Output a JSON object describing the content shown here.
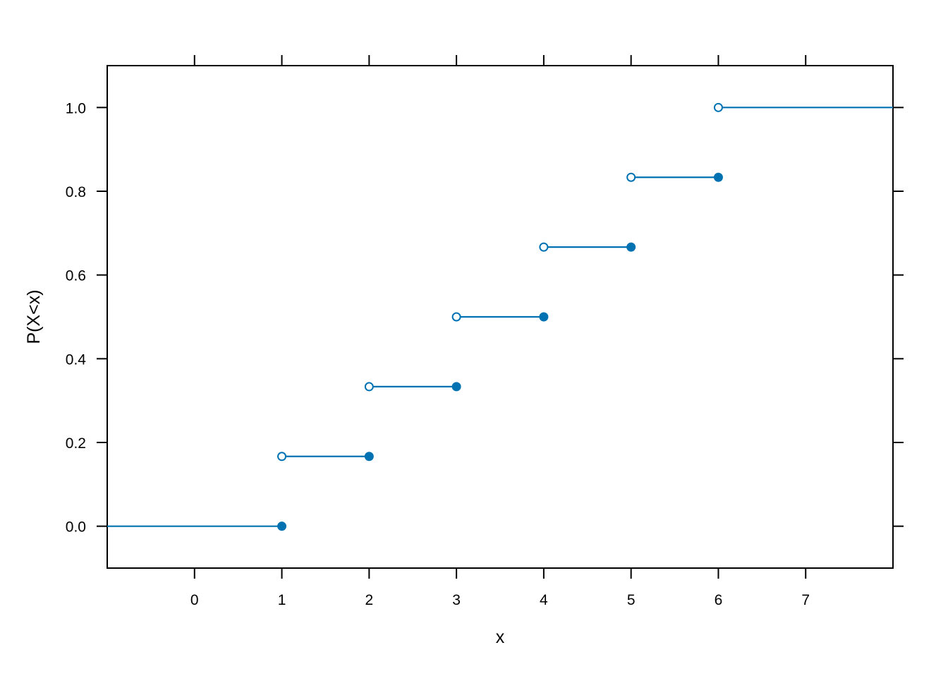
{
  "chart_data": {
    "type": "step",
    "title": "",
    "xlabel": "x",
    "ylabel": "P(X<x)",
    "xlim": [
      -1,
      8
    ],
    "ylim": [
      -0.1,
      1.1
    ],
    "x_ticks": [
      0,
      1,
      2,
      3,
      4,
      5,
      6,
      7
    ],
    "x_tick_labels": [
      "0",
      "1",
      "2",
      "3",
      "4",
      "5",
      "6",
      "7"
    ],
    "y_ticks": [
      0.0,
      0.2,
      0.4,
      0.6,
      0.8,
      1.0
    ],
    "y_tick_labels": [
      "0.0",
      "0.2",
      "0.4",
      "0.6",
      "0.8",
      "1.0"
    ],
    "grid": false,
    "color": "#0072B2",
    "segments": [
      {
        "x_start": -1,
        "x_end": 1,
        "y": 0.0,
        "open_start": false,
        "closed_end": true
      },
      {
        "x_start": 1,
        "x_end": 2,
        "y": 0.1667,
        "open_start": true,
        "closed_end": true
      },
      {
        "x_start": 2,
        "x_end": 3,
        "y": 0.3333,
        "open_start": true,
        "closed_end": true
      },
      {
        "x_start": 3,
        "x_end": 4,
        "y": 0.5,
        "open_start": true,
        "closed_end": true
      },
      {
        "x_start": 4,
        "x_end": 5,
        "y": 0.6667,
        "open_start": true,
        "closed_end": true
      },
      {
        "x_start": 5,
        "x_end": 6,
        "y": 0.8333,
        "open_start": true,
        "closed_end": true
      },
      {
        "x_start": 6,
        "x_end": 8,
        "y": 1.0,
        "open_start": true,
        "closed_end": false
      }
    ]
  }
}
